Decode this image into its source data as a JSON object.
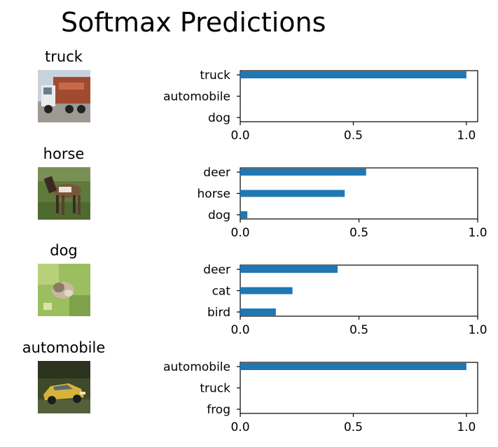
{
  "title": "Softmax Predictions",
  "rows": [
    {
      "true_label": "truck"
    },
    {
      "true_label": "horse"
    },
    {
      "true_label": "dog"
    },
    {
      "true_label": "automobile"
    }
  ],
  "colors": {
    "bar": "#1f77b4",
    "axis": "#000000"
  },
  "chart_data": [
    {
      "type": "bar",
      "orientation": "horizontal",
      "categories": [
        "truck",
        "automobile",
        "dog"
      ],
      "values": [
        1.0,
        0.0,
        0.0
      ],
      "xlim": [
        0,
        1.05
      ],
      "xticks": [
        "0.0",
        "0.5",
        "1.0"
      ],
      "grid": false
    },
    {
      "type": "bar",
      "orientation": "horizontal",
      "categories": [
        "deer",
        "horse",
        "dog"
      ],
      "values": [
        0.53,
        0.44,
        0.03
      ],
      "xlim": [
        0,
        1.0
      ],
      "xticks": [
        "0.0",
        "0.5",
        "1.0"
      ],
      "grid": false
    },
    {
      "type": "bar",
      "orientation": "horizontal",
      "categories": [
        "deer",
        "cat",
        "bird"
      ],
      "values": [
        0.41,
        0.22,
        0.15
      ],
      "xlim": [
        0,
        1.0
      ],
      "xticks": [
        "0.0",
        "0.5",
        "1.0"
      ],
      "grid": false
    },
    {
      "type": "bar",
      "orientation": "horizontal",
      "categories": [
        "automobile",
        "truck",
        "frog"
      ],
      "values": [
        1.0,
        0.0,
        0.0
      ],
      "xlim": [
        0,
        1.05
      ],
      "xticks": [
        "0.0",
        "0.5",
        "1.0"
      ],
      "grid": false
    }
  ]
}
